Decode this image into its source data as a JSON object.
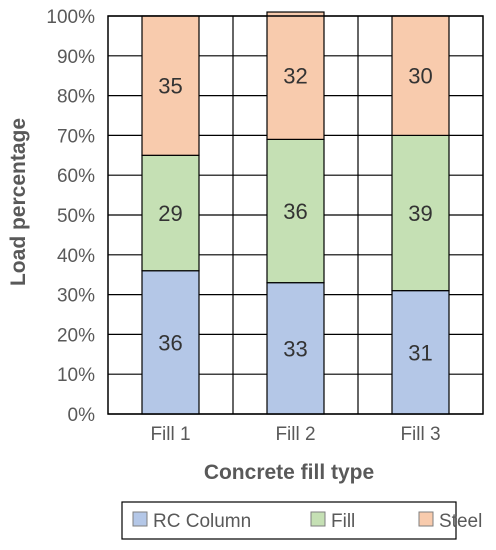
{
  "chart_data": {
    "type": "bar",
    "stacked": true,
    "percent": true,
    "categories": [
      "Fill 1",
      "Fill 2",
      "Fill 3"
    ],
    "series": [
      {
        "name": "RC Column",
        "values": [
          36,
          33,
          31
        ],
        "color": "#b4c7e7"
      },
      {
        "name": "Fill",
        "values": [
          29,
          36,
          39
        ],
        "color": "#c5e0b4"
      },
      {
        "name": "Steel",
        "values": [
          35,
          32,
          30
        ],
        "color": "#f8cbad"
      }
    ],
    "title": "",
    "xlabel": "Concrete fill type",
    "ylabel": "Load percentage",
    "ylim": [
      0,
      100
    ],
    "yticks": [
      "0%",
      "10%",
      "20%",
      "30%",
      "40%",
      "50%",
      "60%",
      "70%",
      "80%",
      "90%",
      "100%"
    ],
    "grid": true,
    "legend_position": "bottom"
  }
}
